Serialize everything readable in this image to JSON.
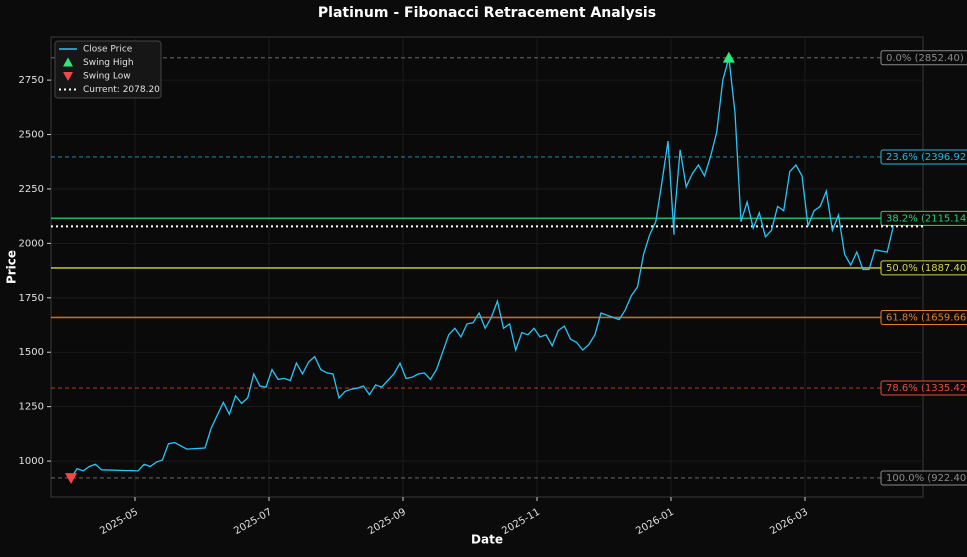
{
  "chart_data": {
    "type": "line",
    "title": "Platinum - Fibonacci Retracement Analysis",
    "x_label": "Date",
    "y_label": "Price",
    "ylim": [
      835,
      2948
    ],
    "yticks": [
      1000,
      1250,
      1500,
      1750,
      2000,
      2250,
      2500,
      2750
    ],
    "xlim": [
      "2025-04",
      "2026-04"
    ],
    "xticks": [
      "2025-05",
      "2025-07",
      "2025-09",
      "2025-11",
      "2026-01",
      "2026-03"
    ],
    "grid": true,
    "legend": "upper left",
    "x": [
      "2025-04",
      "2025-04",
      "2025-04",
      "2025-04",
      "2025-04",
      "2025-04",
      "2025-05",
      "2025-05",
      "2025-05",
      "2025-05",
      "2025-05",
      "2025-05",
      "2025-05",
      "2025-05",
      "2025-05",
      "2025-06",
      "2025-06",
      "2025-06",
      "2025-06",
      "2025-06",
      "2025-06",
      "2025-06",
      "2025-06",
      "2025-06",
      "2025-06",
      "2025-06",
      "2025-07",
      "2025-07",
      "2025-07",
      "2025-07",
      "2025-07",
      "2025-07",
      "2025-07",
      "2025-07",
      "2025-07",
      "2025-07",
      "2025-07",
      "2025-08",
      "2025-08",
      "2025-08",
      "2025-08",
      "2025-08",
      "2025-08",
      "2025-08",
      "2025-08",
      "2025-08",
      "2025-08",
      "2025-08",
      "2025-09",
      "2025-09",
      "2025-09",
      "2025-09",
      "2025-09",
      "2025-09",
      "2025-09",
      "2025-09",
      "2025-09",
      "2025-09",
      "2025-09",
      "2025-10",
      "2025-10",
      "2025-10",
      "2025-10",
      "2025-10",
      "2025-10",
      "2025-10",
      "2025-10",
      "2025-10",
      "2025-10",
      "2025-10",
      "2025-11",
      "2025-11",
      "2025-11",
      "2025-11",
      "2025-11",
      "2025-11",
      "2025-11",
      "2025-11",
      "2025-11",
      "2025-11",
      "2025-11",
      "2025-12",
      "2025-12",
      "2025-12",
      "2025-12",
      "2025-12",
      "2025-12",
      "2025-12",
      "2025-12",
      "2025-12",
      "2025-12",
      "2025-12",
      "2025-12",
      "2026-01",
      "2026-01",
      "2026-01",
      "2026-01",
      "2026-01",
      "2026-01",
      "2026-01",
      "2026-01",
      "2026-01",
      "2026-01",
      "2026-01",
      "2026-01",
      "2026-02",
      "2026-02",
      "2026-02",
      "2026-02",
      "2026-02",
      "2026-02",
      "2026-02",
      "2026-02",
      "2026-02",
      "2026-02",
      "2026-02",
      "2026-03",
      "2026-03",
      "2026-03",
      "2026-03",
      "2026-03",
      "2026-03",
      "2026-03",
      "2026-03",
      "2026-03",
      "2026-03",
      "2026-03",
      "2026-04",
      "2026-04",
      "2026-04",
      "2026-04"
    ],
    "series": [
      {
        "name": "Close Price",
        "color": "#29c5f6",
        "values": [
          922.4,
          965,
          955,
          975,
          985,
          960,
          955,
          985,
          975,
          995,
          1005,
          1080,
          1085,
          1070,
          1055,
          1060,
          1150,
          1210,
          1270,
          1215,
          1300,
          1265,
          1290,
          1400,
          1345,
          1340,
          1420,
          1375,
          1380,
          1370,
          1450,
          1400,
          1455,
          1480,
          1420,
          1405,
          1400,
          1290,
          1320,
          1330,
          1335,
          1345,
          1305,
          1350,
          1340,
          1370,
          1400,
          1450,
          1380,
          1385,
          1400,
          1405,
          1375,
          1420,
          1500,
          1580,
          1610,
          1570,
          1630,
          1635,
          1680,
          1610,
          1660,
          1735,
          1610,
          1630,
          1510,
          1590,
          1580,
          1610,
          1570,
          1580,
          1530,
          1600,
          1620,
          1560,
          1545,
          1510,
          1535,
          1580,
          1680,
          1670,
          1660,
          1650,
          1695,
          1760,
          1800,
          1950,
          2040,
          2100,
          2280,
          2470,
          2040,
          2100,
          2430,
          2260,
          2320,
          2360,
          2310,
          2400,
          2510,
          2750,
          2852.4,
          2600,
          2100,
          2100,
          2190,
          2070,
          2140,
          2030,
          2060,
          2170,
          2150,
          2330,
          2360,
          2310,
          2080,
          2150,
          2170,
          2240,
          2060,
          2130,
          1950,
          1900,
          1960,
          1880,
          1880,
          1970,
          1965,
          1960,
          2078.2
        ]
      }
    ],
    "markers": [
      {
        "name": "Swing High",
        "x": "2026-01",
        "value": 2852.4,
        "color": "#2ee87a",
        "shape": "up"
      },
      {
        "name": "Swing Low",
        "x": "2025-04",
        "value": 922.4,
        "color": "#f04848",
        "shape": "down"
      }
    ],
    "current": {
      "label": "Current: 2078.20",
      "value": 2078.2,
      "color": "#ffffff"
    },
    "levels": [
      {
        "label": "0.0% (2852.40)",
        "value": 2852.4,
        "color": "#8a8a8a",
        "style": "dashed"
      },
      {
        "label": "23.6% (2396.92)",
        "value": 2396.92,
        "color": "#29b6d8",
        "style": "dashed"
      },
      {
        "label": "38.2% (2115.14)",
        "value": 2115.14,
        "color": "#2ecc71",
        "style": "solid"
      },
      {
        "label": "50.0% (1887.40)",
        "value": 1887.4,
        "color": "#d4d44a",
        "style": "solid"
      },
      {
        "label": "61.8% (1659.66)",
        "value": 1659.66,
        "color": "#e67e22",
        "style": "solid"
      },
      {
        "label": "78.6% (1335.42)",
        "value": 1335.42,
        "color": "#e74c3c",
        "style": "dashed"
      },
      {
        "label": "100.0% (922.40)",
        "value": 922.4,
        "color": "#8a8a8a",
        "style": "dashed"
      }
    ]
  }
}
